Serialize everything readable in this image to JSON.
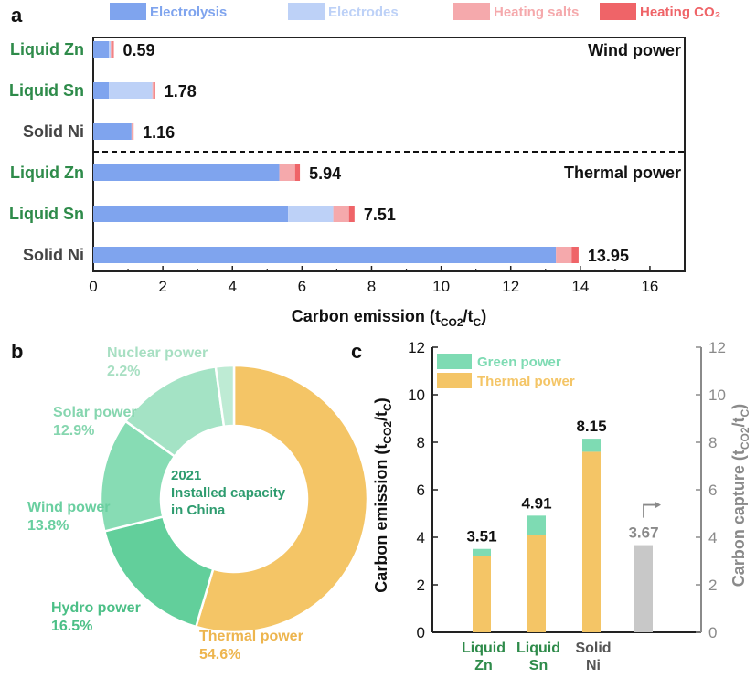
{
  "panels": {
    "a": "a",
    "b": "b",
    "c": "c"
  },
  "chart_data": [
    {
      "panel": "a",
      "type": "bar",
      "orientation": "horizontal",
      "stacked": true,
      "legend_position": "top",
      "legend": [
        {
          "text": "Electrolysis",
          "color": "#7FA4EE"
        },
        {
          "text": "Electrodes",
          "color": "#BDD1F7"
        },
        {
          "text": "Heating salts",
          "color": "#F5A9AC"
        },
        {
          "text": "Heating CO₂",
          "color": "#EF6468"
        }
      ],
      "text_color_label_green": "#2E8B4A",
      "text_color_label_gray": "#444444",
      "categories": [
        {
          "label": "Liquid Zn",
          "group": "Wind power",
          "color": "green"
        },
        {
          "label": "Liquid Sn",
          "group": "Wind power",
          "color": "green"
        },
        {
          "label": "Solid Ni",
          "group": "Wind power",
          "color": "gray"
        },
        {
          "label": "Liquid Zn",
          "group": "Thermal power",
          "color": "green"
        },
        {
          "label": "Liquid Sn",
          "group": "Thermal power",
          "color": "green"
        },
        {
          "label": "Solid Ni",
          "group": "Thermal power",
          "color": "gray"
        }
      ],
      "series": [
        {
          "name": "Electrolysis",
          "values": [
            0.45,
            0.45,
            1.1,
            5.35,
            5.6,
            13.3
          ]
        },
        {
          "name": "Electrodes",
          "values": [
            0.05,
            1.25,
            0.0,
            0.0,
            1.3,
            0.0
          ]
        },
        {
          "name": "Heating salts",
          "values": [
            0.06,
            0.05,
            0.03,
            0.45,
            0.45,
            0.45
          ]
        },
        {
          "name": "Heating CO₂",
          "values": [
            0.03,
            0.03,
            0.03,
            0.14,
            0.16,
            0.2
          ]
        }
      ],
      "totals": [
        "0.59",
        "1.78",
        "1.16",
        "5.94",
        "7.51",
        "13.95"
      ],
      "group_labels": [
        "Wind power",
        "Thermal power"
      ],
      "xlabel": "Carbon emission (t",
      "xlabel_sub1": "CO2",
      "xlabel_mid": "/t",
      "xlabel_sub2": "C",
      "xlabel_end": ")",
      "xlim": [
        0,
        17
      ],
      "xticks": [
        "0",
        "2",
        "4",
        "6",
        "8",
        "10",
        "12",
        "14",
        "16"
      ]
    },
    {
      "panel": "b",
      "type": "pie",
      "donut": true,
      "center_text": [
        "2021",
        "Installed capacity",
        "in China"
      ],
      "center_color": "#2E9C6F",
      "slices": [
        {
          "label": "Thermal power",
          "percent": "54.6%",
          "value": 54.6,
          "color": "#F4C566",
          "text_color": "#EDB54E"
        },
        {
          "label": "Hydro power",
          "percent": "16.5%",
          "value": 16.5,
          "color": "#62CF9B",
          "text_color": "#4BBF86"
        },
        {
          "label": "Wind power",
          "percent": "13.8%",
          "value": 13.8,
          "color": "#87DCB4",
          "text_color": "#6ACFA0"
        },
        {
          "label": "Solar power",
          "percent": "12.9%",
          "value": 12.9,
          "color": "#A4E3C5",
          "text_color": "#86D6AF"
        },
        {
          "label": "Nuclear power",
          "percent": "2.2%",
          "value": 2.2,
          "color": "#BEEBD4",
          "text_color": "#A7DFC2"
        }
      ]
    },
    {
      "panel": "c",
      "type": "bar",
      "stacked": true,
      "legend_position": "top-left",
      "legend": [
        {
          "text": "Green power",
          "color": "#7EDBB3"
        },
        {
          "text": "Thermal power",
          "color": "#F4C566"
        }
      ],
      "categories": [
        {
          "line1": "Liquid",
          "line2": "Zn",
          "color": "#2E8B4A"
        },
        {
          "line1": "Liquid",
          "line2": "Sn",
          "color": "#2E8B4A"
        },
        {
          "line1": "Solid",
          "line2": "Ni",
          "color": "#555555"
        }
      ],
      "series": [
        {
          "name": "Thermal power",
          "values": [
            3.2,
            4.1,
            7.6
          ]
        },
        {
          "name": "Green power",
          "values": [
            0.31,
            0.81,
            0.55
          ]
        }
      ],
      "totals": [
        "3.51",
        "4.91",
        "8.15"
      ],
      "capture": {
        "value": 3.67,
        "label": "3.67",
        "color": "#C8C8C8",
        "text_color": "#8A8A8A"
      },
      "ylabel_left": "Carbon emission (t",
      "ylabel_right": "Carbon capture (t",
      "ylabel_sub1": "CO2",
      "ylabel_mid": "/t",
      "ylabel_sub2": "C",
      "ylabel_end": ")",
      "ylim": [
        0,
        12
      ],
      "yticks": [
        "0",
        "2",
        "4",
        "6",
        "8",
        "10",
        "12"
      ]
    }
  ]
}
